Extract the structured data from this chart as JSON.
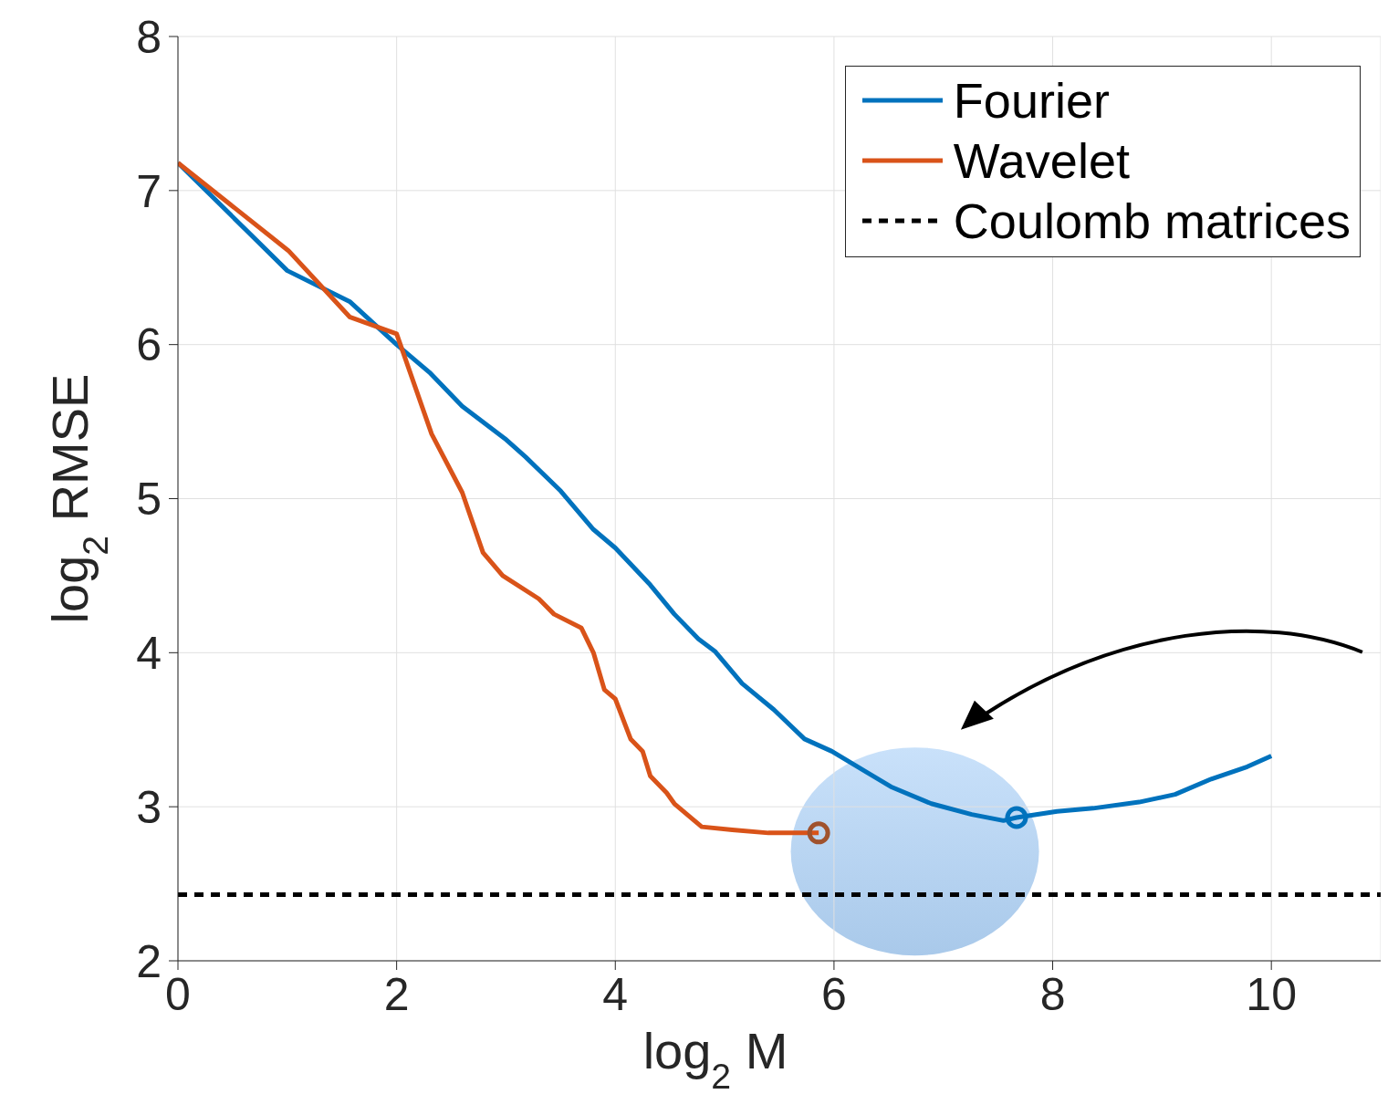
{
  "chart_data": {
    "type": "line",
    "xlabel": "log$_{2}$ M",
    "ylabel": "log$_{2}$ RMSE",
    "xlim": [
      0,
      11
    ],
    "ylim": [
      2,
      8
    ],
    "xticks": [
      0,
      2,
      4,
      6,
      8,
      10
    ],
    "yticks": [
      2,
      3,
      4,
      5,
      6,
      7,
      8
    ],
    "grid": true,
    "legend": "top right",
    "marker": "none",
    "series": [
      {
        "name": "Fourier",
        "color": "#0072bd",
        "line_style": "solid",
        "x": [
          0,
          1,
          1.57,
          2,
          2.3,
          2.6,
          2.99,
          3.18,
          3.5,
          3.8,
          4,
          4.32,
          4.54,
          4.76,
          4.91,
          5.16,
          5.45,
          5.73,
          5.98,
          6.31,
          6.52,
          6.89,
          7.26,
          7.55,
          7.67,
          8.04,
          8.37,
          8.79,
          9.12,
          9.45,
          9.78,
          10
        ],
        "values": [
          7.18,
          6.48,
          6.28,
          6,
          5.82,
          5.6,
          5.39,
          5.27,
          5.05,
          4.8,
          4.68,
          4.44,
          4.25,
          4.09,
          4.01,
          3.8,
          3.63,
          3.44,
          3.36,
          3.22,
          3.13,
          3.02,
          2.95,
          2.91,
          2.93,
          2.97,
          2.99,
          3.03,
          3.08,
          3.18,
          3.26,
          3.33
        ]
      },
      {
        "name": "Wavelet",
        "color": "#d95319",
        "line_style": "solid",
        "x": [
          0,
          1.01,
          1.57,
          2,
          2.32,
          2.6,
          2.79,
          2.97,
          3.3,
          3.44,
          3.69,
          3.8,
          3.9,
          4,
          4.14,
          4.25,
          4.32,
          4.47,
          4.54,
          4.79,
          5.07,
          5.4,
          5.86
        ],
        "values": [
          7.18,
          6.61,
          6.18,
          6.07,
          5.42,
          5.04,
          4.65,
          4.5,
          4.35,
          4.25,
          4.16,
          4,
          3.76,
          3.7,
          3.44,
          3.36,
          3.2,
          3.09,
          3.02,
          2.87,
          2.85,
          2.83,
          2.83
        ]
      },
      {
        "name": "Coulomb matrices",
        "color": "#000000",
        "line_style": "dashed",
        "x": [
          0,
          11
        ],
        "values": [
          2.43,
          2.43
        ]
      },
      {
        "type": "scatter",
        "color": "#0072bd",
        "marker": "circle",
        "x": [
          7.67
        ],
        "values": [
          2.93
        ]
      },
      {
        "type": "scatter",
        "color": "#a0522d",
        "marker": "circle",
        "x": [
          5.86
        ],
        "values": [
          2.83
        ]
      }
    ]
  }
}
